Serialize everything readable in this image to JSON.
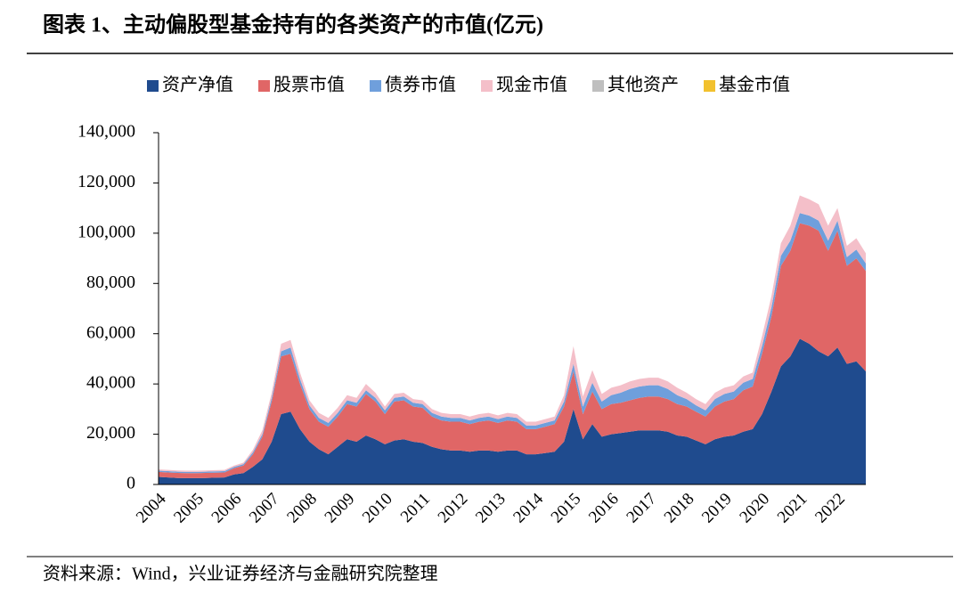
{
  "chart_data": {
    "type": "stacked_area",
    "title": "图表 1、主动偏股型基金持有的各类资产的市值(亿元)",
    "source": "资料来源：Wind，兴业证券经济与金融研究院整理",
    "categories": [
      "2004",
      null,
      null,
      null,
      "2005",
      null,
      null,
      null,
      "2006",
      null,
      null,
      null,
      "2007",
      null,
      null,
      null,
      "2008",
      null,
      null,
      null,
      "2009",
      null,
      null,
      null,
      "2010",
      null,
      null,
      null,
      "2011",
      null,
      null,
      null,
      "2012",
      null,
      null,
      null,
      "2013",
      null,
      null,
      null,
      "2014",
      null,
      null,
      null,
      "2015",
      null,
      null,
      null,
      "2016",
      null,
      null,
      null,
      "2017",
      null,
      null,
      null,
      "2018",
      null,
      null,
      null,
      "2019",
      null,
      null,
      null,
      "2020",
      null,
      null,
      null,
      "2021",
      null,
      null,
      null,
      "2022",
      null,
      null,
      null
    ],
    "series": [
      {
        "name": "资产净值",
        "color": "#1f4b8e",
        "values": [
          3000,
          2800,
          2600,
          2500,
          2500,
          2600,
          2700,
          2800,
          4000,
          4500,
          7000,
          10000,
          17000,
          28000,
          29000,
          22000,
          17000,
          14000,
          12000,
          15000,
          18000,
          17000,
          19500,
          18000,
          16000,
          17500,
          18000,
          17000,
          16500,
          15000,
          14000,
          13500,
          13500,
          13000,
          13500,
          13500,
          13000,
          13500,
          13500,
          12000,
          12000,
          12500,
          13000,
          17000,
          30000,
          18000,
          24000,
          19000,
          20000,
          20500,
          21000,
          21500,
          21500,
          21500,
          21000,
          19500,
          19000,
          17500,
          16000,
          18000,
          19000,
          19500,
          21000,
          22000,
          28000,
          37000,
          47000,
          51000,
          58000,
          56000,
          53000,
          51000,
          54500,
          48000,
          49000,
          45000
        ]
      },
      {
        "name": "股票市值",
        "color": "#e06666",
        "values": [
          2000,
          2000,
          2000,
          2000,
          2000,
          2000,
          2000,
          2000,
          2500,
          3000,
          5000,
          9000,
          16000,
          23000,
          23000,
          18000,
          13000,
          11000,
          11000,
          12000,
          14000,
          14000,
          16500,
          15000,
          12000,
          15500,
          15500,
          14000,
          14000,
          12000,
          11500,
          11500,
          11500,
          11000,
          11500,
          12000,
          11500,
          12000,
          11500,
          10000,
          10000,
          10500,
          11000,
          14000,
          15000,
          10000,
          13000,
          11000,
          12000,
          12000,
          12500,
          13000,
          13500,
          13500,
          13000,
          12500,
          12000,
          11500,
          11000,
          13000,
          14000,
          14500,
          16500,
          17000,
          24000,
          30000,
          40000,
          42000,
          46000,
          47000,
          48000,
          42000,
          46500,
          39000,
          41000,
          40000
        ]
      },
      {
        "name": "债券市值",
        "color": "#6f9fdc",
        "values": [
          500,
          500,
          500,
          500,
          500,
          500,
          500,
          500,
          500,
          600,
          800,
          1000,
          1500,
          2000,
          2500,
          2000,
          1500,
          1500,
          1500,
          1500,
          1500,
          1500,
          1500,
          1500,
          1500,
          1500,
          1500,
          1500,
          1500,
          1500,
          1500,
          1500,
          1500,
          1500,
          1500,
          1500,
          1500,
          1500,
          1500,
          1500,
          1500,
          1500,
          1500,
          2000,
          3000,
          3000,
          3500,
          3000,
          3500,
          4000,
          4500,
          4500,
          4500,
          4500,
          4000,
          3500,
          3000,
          2500,
          2500,
          3000,
          3000,
          3000,
          3000,
          3000,
          3000,
          3500,
          4000,
          4000,
          4000,
          4000,
          4000,
          4000,
          4000,
          3500,
          3500,
          3000
        ]
      },
      {
        "name": "现金市值",
        "color": "#f4bfc9",
        "values": [
          500,
          500,
          500,
          500,
          500,
          500,
          500,
          500,
          500,
          600,
          1000,
          1500,
          2000,
          3000,
          3000,
          2500,
          2000,
          2000,
          2000,
          2000,
          2000,
          2000,
          2500,
          2000,
          1500,
          1500,
          1500,
          1500,
          1500,
          1500,
          1500,
          1500,
          1500,
          1500,
          1500,
          1500,
          1500,
          1500,
          1500,
          1500,
          1500,
          1500,
          1500,
          2500,
          7000,
          4000,
          5000,
          3000,
          3000,
          3000,
          3000,
          3000,
          3000,
          3000,
          3000,
          3000,
          2500,
          2500,
          2500,
          2500,
          2500,
          2500,
          2500,
          2500,
          4000,
          4500,
          5000,
          6000,
          7000,
          6500,
          6500,
          6000,
          5000,
          4500,
          4500,
          4000
        ]
      },
      {
        "name": "其他资产",
        "color": "#bfbfbf",
        "values": [
          0,
          0,
          0,
          0,
          0,
          0,
          0,
          0,
          0,
          0,
          0,
          0,
          0,
          0,
          0,
          0,
          0,
          0,
          0,
          0,
          0,
          0,
          0,
          0,
          0,
          0,
          0,
          0,
          0,
          0,
          0,
          0,
          0,
          0,
          0,
          0,
          0,
          0,
          0,
          0,
          0,
          0,
          0,
          0,
          0,
          0,
          0,
          0,
          0,
          0,
          0,
          0,
          0,
          0,
          0,
          0,
          0,
          0,
          0,
          0,
          0,
          0,
          0,
          0,
          0,
          0,
          0,
          0,
          0,
          0,
          0,
          0,
          0,
          0,
          0,
          0
        ]
      },
      {
        "name": "基金市值",
        "color": "#f2c12e",
        "values": [
          0,
          0,
          0,
          0,
          0,
          0,
          0,
          0,
          0,
          0,
          0,
          0,
          0,
          0,
          0,
          0,
          0,
          0,
          0,
          0,
          0,
          0,
          0,
          0,
          0,
          0,
          0,
          0,
          0,
          0,
          0,
          0,
          0,
          0,
          0,
          0,
          0,
          0,
          0,
          0,
          0,
          0,
          0,
          0,
          0,
          0,
          0,
          0,
          0,
          0,
          0,
          0,
          0,
          0,
          0,
          0,
          0,
          0,
          0,
          0,
          0,
          0,
          0,
          0,
          0,
          0,
          0,
          0,
          0,
          0,
          0,
          0,
          0,
          0,
          0,
          0
        ]
      }
    ],
    "ylim": [
      0,
      140000
    ],
    "yticks": [
      0,
      {
        "value": 20000,
        "label": "20,000"
      },
      {
        "value": 40000,
        "label": "40,000"
      },
      {
        "value": 60000,
        "label": "60,000"
      },
      {
        "value": 80000,
        "label": "80,000"
      },
      {
        "value": 100000,
        "label": "100,000"
      },
      {
        "value": 120000,
        "label": "120,000"
      },
      {
        "value": 140000,
        "label": "140,000"
      }
    ],
    "legend": "top"
  }
}
